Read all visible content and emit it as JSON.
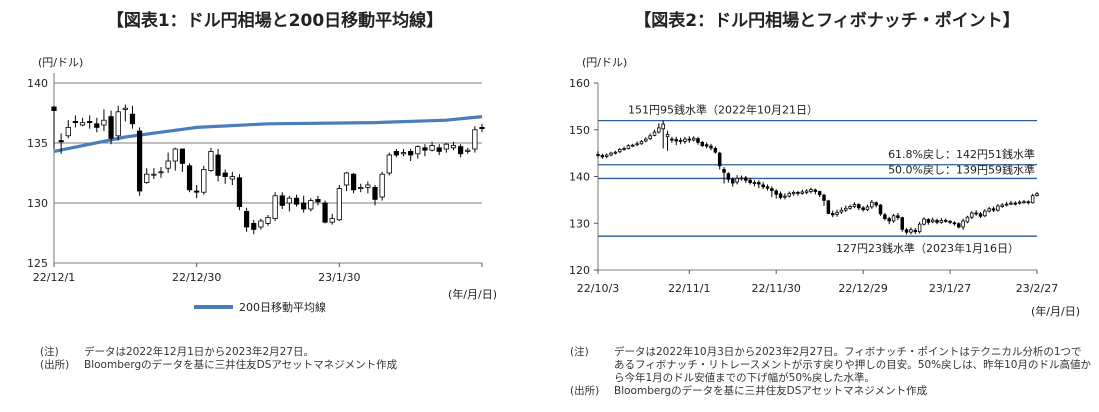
{
  "chart_data": [
    {
      "type": "candlestick+line",
      "title": "【図表1：ドル円相場と200日移動平均線】",
      "y_unit": "(円/ドル)",
      "x_unit": "(年/月/日)",
      "ylim": [
        125,
        140
      ],
      "yticks": [
        "140",
        "135",
        "130",
        "125"
      ],
      "xticks": [
        "22/12/1",
        "22/12/30",
        "23/1/30"
      ],
      "xtick_positions": [
        0,
        20,
        40
      ],
      "n_sessions": 61,
      "grid": "horizontal",
      "legend": "bottom-center",
      "ma_series": {
        "name": "200日移動平均線",
        "color": "#4a7ebb",
        "points": [
          [
            0,
            134.3
          ],
          [
            10,
            135.5
          ],
          [
            15,
            135.9
          ],
          [
            20,
            136.3
          ],
          [
            30,
            136.6
          ],
          [
            45,
            136.7
          ],
          [
            55,
            136.9
          ],
          [
            60,
            137.2
          ]
        ]
      },
      "candles": [
        [
          138.0,
          137.7,
          138.1,
          134.5
        ],
        [
          135.2,
          135.1,
          135.8,
          134.1
        ],
        [
          135.6,
          136.3,
          136.9,
          135.4
        ],
        [
          136.8,
          136.7,
          137.3,
          136.3
        ],
        [
          136.5,
          136.7,
          137.1,
          136.4
        ],
        [
          136.8,
          136.7,
          137.3,
          136.2
        ],
        [
          136.6,
          136.3,
          137.1,
          135.9
        ],
        [
          136.5,
          136.9,
          137.8,
          136.0
        ],
        [
          137.2,
          135.4,
          137.7,
          134.9
        ],
        [
          135.6,
          137.6,
          138.1,
          135.2
        ],
        [
          137.8,
          137.9,
          138.2,
          136.8
        ],
        [
          137.4,
          136.6,
          138.1,
          136.2
        ],
        [
          136.0,
          131.0,
          136.3,
          130.6
        ],
        [
          131.7,
          132.4,
          132.9,
          131.6
        ],
        [
          132.4,
          132.4,
          132.9,
          132.0
        ],
        [
          132.6,
          132.6,
          133.0,
          132.1
        ],
        [
          132.9,
          133.5,
          134.2,
          132.5
        ],
        [
          133.5,
          134.5,
          134.6,
          132.7
        ],
        [
          134.5,
          133.3,
          134.5,
          132.6
        ],
        [
          133.1,
          131.1,
          133.3,
          130.9
        ],
        [
          131.0,
          130.9,
          131.5,
          130.4
        ],
        [
          130.9,
          132.8,
          133.1,
          130.7
        ],
        [
          132.7,
          134.3,
          134.6,
          132.6
        ],
        [
          134.0,
          132.3,
          134.5,
          131.8
        ],
        [
          132.5,
          132.2,
          132.8,
          131.6
        ],
        [
          132.0,
          132.2,
          132.6,
          131.5
        ],
        [
          132.1,
          129.7,
          132.4,
          129.4
        ],
        [
          129.3,
          128.0,
          129.6,
          127.6
        ],
        [
          128.3,
          127.8,
          128.6,
          127.4
        ],
        [
          128.0,
          128.5,
          128.7,
          127.8
        ],
        [
          128.3,
          128.8,
          129.0,
          128.1
        ],
        [
          128.7,
          130.6,
          130.9,
          128.5
        ],
        [
          130.6,
          129.8,
          130.9,
          129.5
        ],
        [
          130.0,
          130.4,
          130.6,
          129.3
        ],
        [
          130.4,
          129.9,
          130.7,
          129.7
        ],
        [
          130.0,
          129.5,
          130.6,
          129.2
        ],
        [
          129.5,
          130.2,
          130.4,
          129.3
        ],
        [
          130.3,
          130.1,
          130.6,
          129.8
        ],
        [
          130.0,
          128.4,
          130.2,
          128.3
        ],
        [
          128.4,
          128.7,
          129.1,
          128.2
        ],
        [
          128.6,
          131.2,
          131.5,
          128.5
        ],
        [
          131.5,
          132.5,
          132.6,
          131.0
        ],
        [
          132.4,
          131.1,
          132.5,
          130.8
        ],
        [
          131.2,
          131.3,
          131.6,
          130.9
        ],
        [
          131.3,
          131.5,
          131.8,
          130.8
        ],
        [
          131.3,
          130.3,
          131.5,
          129.8
        ],
        [
          130.5,
          132.4,
          132.6,
          130.2
        ],
        [
          132.5,
          134.0,
          134.2,
          132.3
        ],
        [
          134.3,
          134.0,
          134.5,
          133.8
        ],
        [
          134.1,
          134.2,
          134.5,
          133.9
        ],
        [
          134.3,
          134.0,
          134.5,
          133.5
        ],
        [
          134.1,
          134.7,
          134.8,
          133.7
        ],
        [
          134.6,
          134.4,
          134.9,
          133.9
        ],
        [
          134.4,
          134.8,
          135.1,
          134.3
        ],
        [
          134.6,
          134.3,
          134.9,
          134.0
        ],
        [
          134.5,
          134.9,
          135.0,
          134.2
        ],
        [
          134.6,
          134.8,
          135.1,
          134.4
        ],
        [
          134.7,
          134.1,
          134.9,
          133.8
        ],
        [
          134.3,
          134.4,
          134.6,
          134.1
        ],
        [
          134.5,
          136.1,
          136.4,
          134.2
        ],
        [
          136.3,
          136.2,
          136.6,
          135.9
        ]
      ]
    },
    {
      "type": "candlestick",
      "title": "【図表2：ドル円相場とフィボナッチ・ポイント】",
      "y_unit": "(円/ドル)",
      "x_unit": "(年/月/日)",
      "ylim": [
        120,
        160
      ],
      "yticks": [
        "160",
        "150",
        "140",
        "130",
        "120"
      ],
      "xticks": [
        "22/10/3",
        "22/11/1",
        "22/11/30",
        "22/12/29",
        "23/1/27",
        "23/2/27"
      ],
      "xtick_positions": [
        0,
        21,
        41,
        61,
        81,
        101
      ],
      "n_sessions": 102,
      "grid": "none",
      "ref_lines": [
        {
          "value": 151.95,
          "label": "151円95銭水準（2022年10月21日）"
        },
        {
          "value": 142.51,
          "label": "61.8%戻し：142円51銭水準"
        },
        {
          "value": 139.59,
          "label": "50.0%戻し：139円59銭水準"
        },
        {
          "value": 127.23,
          "label": "127円23銭水準（2023年1月16日）"
        }
      ],
      "ref_color": "#2e5c97",
      "candles": [
        [
          144.7,
          144.5,
          145.4,
          144.0
        ],
        [
          144.5,
          144.2,
          144.9,
          143.8
        ],
        [
          144.3,
          144.6,
          144.9,
          143.9
        ],
        [
          144.6,
          145.0,
          145.3,
          144.3
        ],
        [
          145.0,
          145.2,
          145.5,
          144.7
        ],
        [
          145.3,
          145.8,
          146.1,
          145.0
        ],
        [
          145.8,
          146.0,
          146.4,
          145.5
        ],
        [
          146.0,
          146.6,
          146.9,
          145.8
        ],
        [
          146.6,
          146.7,
          147.0,
          146.3
        ],
        [
          146.8,
          147.0,
          147.5,
          146.5
        ],
        [
          147.0,
          147.5,
          147.8,
          146.8
        ],
        [
          147.6,
          148.0,
          148.4,
          147.3
        ],
        [
          148.1,
          148.7,
          149.2,
          147.8
        ],
        [
          148.8,
          149.5,
          150.0,
          148.6
        ],
        [
          149.5,
          150.4,
          151.4,
          149.2
        ],
        [
          150.2,
          151.2,
          152.0,
          146.0
        ],
        [
          148.5,
          149.0,
          149.8,
          145.5
        ],
        [
          148.0,
          147.8,
          148.5,
          147.2
        ],
        [
          147.9,
          147.6,
          148.5,
          146.7
        ],
        [
          147.7,
          147.5,
          148.3,
          146.9
        ],
        [
          147.5,
          148.0,
          148.5,
          147.0
        ],
        [
          148.0,
          147.8,
          148.6,
          147.2
        ],
        [
          147.8,
          148.2,
          148.6,
          147.5
        ],
        [
          148.1,
          147.3,
          148.5,
          146.8
        ],
        [
          147.3,
          146.6,
          147.6,
          146.3
        ],
        [
          146.8,
          146.5,
          147.3,
          146.0
        ],
        [
          146.5,
          146.1,
          147.0,
          145.6
        ],
        [
          146.0,
          145.2,
          146.4,
          144.9
        ],
        [
          145.0,
          142.3,
          145.3,
          141.5
        ],
        [
          141.5,
          140.9,
          142.0,
          138.5
        ],
        [
          140.6,
          139.4,
          140.9,
          138.7
        ],
        [
          139.4,
          138.6,
          139.8,
          137.8
        ],
        [
          138.8,
          139.6,
          140.3,
          138.3
        ],
        [
          139.6,
          139.7,
          140.2,
          139.1
        ],
        [
          139.7,
          139.2,
          140.1,
          138.6
        ],
        [
          139.2,
          138.7,
          139.7,
          138.3
        ],
        [
          138.6,
          138.7,
          139.2,
          137.9
        ],
        [
          138.7,
          138.4,
          139.2,
          137.5
        ],
        [
          138.2,
          137.8,
          138.8,
          137.3
        ],
        [
          137.8,
          137.5,
          138.3,
          137.0
        ],
        [
          137.4,
          137.0,
          137.9,
          135.6
        ],
        [
          136.9,
          136.2,
          137.3,
          135.3
        ],
        [
          136.3,
          135.5,
          136.8,
          135.1
        ],
        [
          135.6,
          135.8,
          136.4,
          135.1
        ],
        [
          135.8,
          136.4,
          136.8,
          135.5
        ],
        [
          136.3,
          136.6,
          137.0,
          135.9
        ],
        [
          136.6,
          136.4,
          136.9,
          135.9
        ],
        [
          136.4,
          136.7,
          137.2,
          136.1
        ],
        [
          136.6,
          136.9,
          137.3,
          136.2
        ],
        [
          136.8,
          137.2,
          137.6,
          136.4
        ],
        [
          137.1,
          136.8,
          137.4,
          136.2
        ],
        [
          136.8,
          136.1,
          137.0,
          135.6
        ],
        [
          136.0,
          134.9,
          136.3,
          133.7
        ],
        [
          134.8,
          132.1,
          135.0,
          131.9
        ],
        [
          132.1,
          131.8,
          132.7,
          131.3
        ],
        [
          131.9,
          132.3,
          132.9,
          131.4
        ],
        [
          132.4,
          132.8,
          133.4,
          132.0
        ],
        [
          132.8,
          133.2,
          133.8,
          132.4
        ],
        [
          133.2,
          133.6,
          134.0,
          132.9
        ],
        [
          133.6,
          134.0,
          134.5,
          133.2
        ],
        [
          134.0,
          133.3,
          134.3,
          132.8
        ],
        [
          133.3,
          132.9,
          133.7,
          132.5
        ],
        [
          132.9,
          133.5,
          134.0,
          132.6
        ],
        [
          133.5,
          134.5,
          135.0,
          133.1
        ],
        [
          134.4,
          133.9,
          134.7,
          133.4
        ],
        [
          133.9,
          132.0,
          134.1,
          131.6
        ],
        [
          131.8,
          131.0,
          132.2,
          130.6
        ],
        [
          131.0,
          130.5,
          131.4,
          129.8
        ],
        [
          130.5,
          131.6,
          132.0,
          130.1
        ],
        [
          131.6,
          131.2,
          132.2,
          130.7
        ],
        [
          131.2,
          128.7,
          131.4,
          128.2
        ],
        [
          128.6,
          128.1,
          129.0,
          127.6
        ],
        [
          128.1,
          128.6,
          129.1,
          127.6
        ],
        [
          128.5,
          128.2,
          129.0,
          127.7
        ],
        [
          128.2,
          129.8,
          130.3,
          127.8
        ],
        [
          129.8,
          130.9,
          131.3,
          129.5
        ],
        [
          130.8,
          130.2,
          131.1,
          129.7
        ],
        [
          130.3,
          130.7,
          131.2,
          130.0
        ],
        [
          130.6,
          130.2,
          131.0,
          129.8
        ],
        [
          130.2,
          130.6,
          131.1,
          129.9
        ],
        [
          130.6,
          130.4,
          131.0,
          130.1
        ],
        [
          130.4,
          130.2,
          130.7,
          129.8
        ],
        [
          130.1,
          129.9,
          130.4,
          129.5
        ],
        [
          129.9,
          129.2,
          130.2,
          128.9
        ],
        [
          129.2,
          130.5,
          131.0,
          128.6
        ],
        [
          130.3,
          131.3,
          131.6,
          130.0
        ],
        [
          131.3,
          132.2,
          132.6,
          130.9
        ],
        [
          132.2,
          132.0,
          132.8,
          131.6
        ],
        [
          132.0,
          131.5,
          132.4,
          131.1
        ],
        [
          131.6,
          132.6,
          133.0,
          131.3
        ],
        [
          132.6,
          133.1,
          133.5,
          132.3
        ],
        [
          133.1,
          132.8,
          133.6,
          132.4
        ],
        [
          132.8,
          133.7,
          134.1,
          132.5
        ],
        [
          133.6,
          133.9,
          134.3,
          133.3
        ],
        [
          133.9,
          134.1,
          134.6,
          133.6
        ],
        [
          134.2,
          134.3,
          134.8,
          133.9
        ],
        [
          134.3,
          134.2,
          134.7,
          133.8
        ],
        [
          134.3,
          134.5,
          134.9,
          134.0
        ],
        [
          134.5,
          134.6,
          135.0,
          134.2
        ],
        [
          134.6,
          134.4,
          134.9,
          134.0
        ],
        [
          134.4,
          135.9,
          136.3,
          134.2
        ],
        [
          135.9,
          136.3,
          136.7,
          135.7
        ]
      ]
    }
  ],
  "notes": {
    "left": [
      {
        "label": "(注)",
        "text": "データは2022年12月1日から2023年2月27日。"
      },
      {
        "label": "(出所)",
        "text": "Bloombergのデータを基に三井住友DSアセットマネジメント作成"
      }
    ],
    "right": [
      {
        "label": "(注)",
        "lines": [
          "データは2022年10月3日から2023年2月27日。フィボナッチ・ポイントはテクニカル分析の1つで",
          "あるフィボナッチ・リトレースメントが示す戻りや押しの目安。50%戻しは、昨年10月のドル高値か",
          "ら今年1月のドル安値までの下げ幅が50%戻した水準。"
        ]
      },
      {
        "label": "(出所)",
        "lines": [
          "Bloombergのデータを基に三井住友DSアセットマネジメント作成"
        ]
      }
    ]
  }
}
